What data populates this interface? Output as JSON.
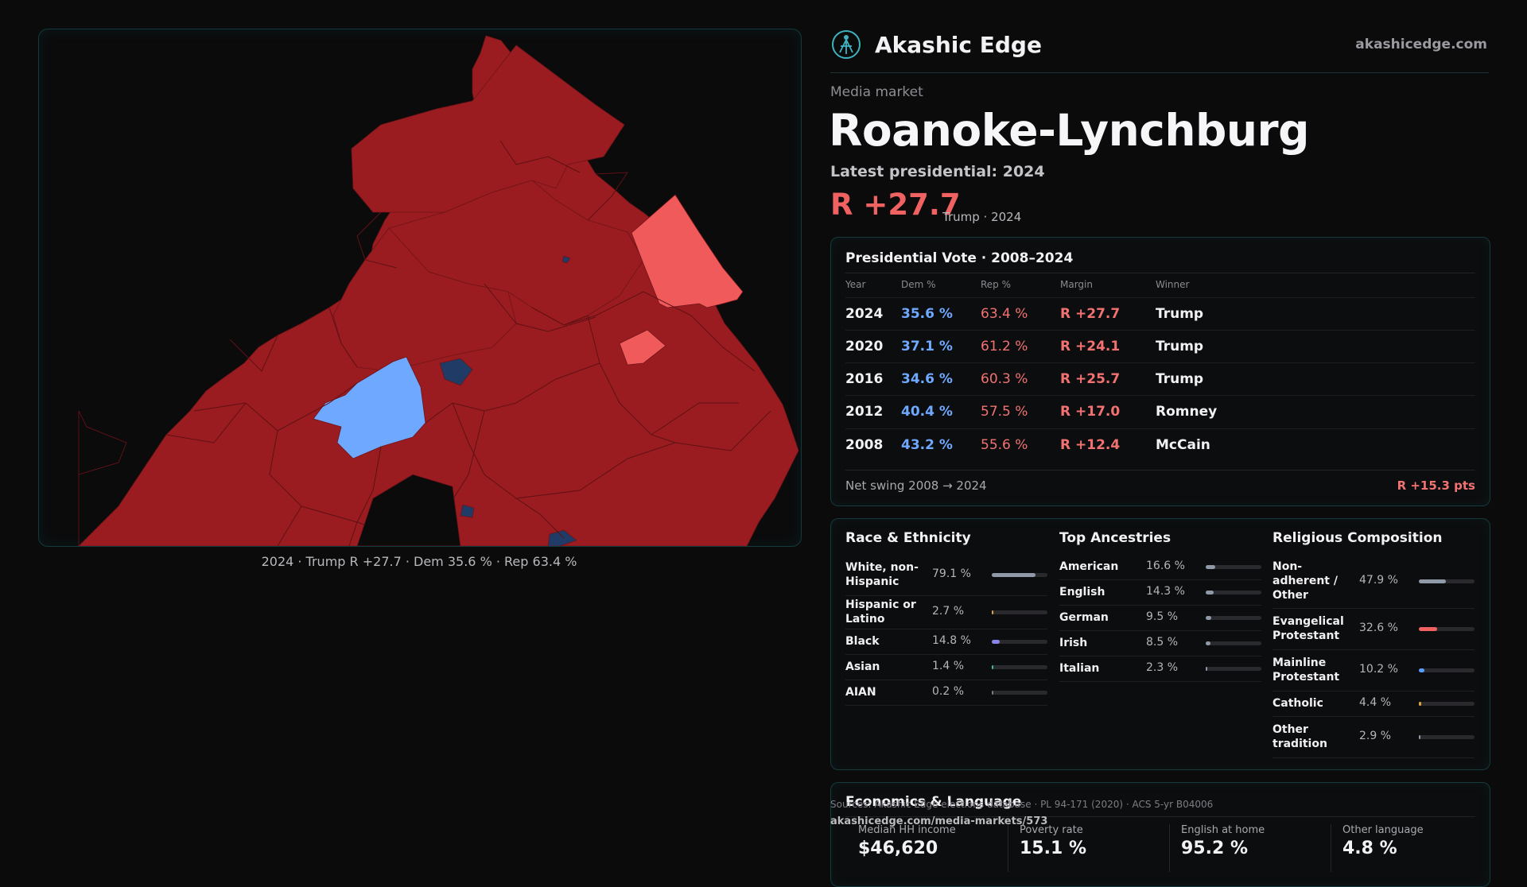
{
  "brand": {
    "name": "Akashic Edge",
    "url": "akashicedge.com"
  },
  "market": {
    "label": "Media market",
    "name": "Roanoke-Lynchburg",
    "latest_label": "Latest presidential: 2024",
    "latest_margin": "R +27.7",
    "latest_winner": "Trump · 2024"
  },
  "map": {
    "caption": "2024 · Trump R +27.7 · Dem 35.6 % · Rep 63.4 %",
    "colors": {
      "strong_rep": "#9a1c20",
      "lean_rep": "#f05a5a",
      "strong_dem": "#1f3b66",
      "lean_dem": "#6fa8ff"
    }
  },
  "presidential": {
    "title": "Presidential Vote · 2008–2024",
    "headers": {
      "year": "Year",
      "dem": "Dem %",
      "rep": "Rep %",
      "margin": "Margin",
      "winner": "Winner"
    },
    "rows": [
      {
        "year": "2024",
        "dem": "35.6 %",
        "rep": "63.4 %",
        "margin": "R +27.7",
        "winner": "Trump"
      },
      {
        "year": "2020",
        "dem": "37.1 %",
        "rep": "61.2 %",
        "margin": "R +24.1",
        "winner": "Trump"
      },
      {
        "year": "2016",
        "dem": "34.6 %",
        "rep": "60.3 %",
        "margin": "R +25.7",
        "winner": "Trump"
      },
      {
        "year": "2012",
        "dem": "40.4 %",
        "rep": "57.5 %",
        "margin": "R +17.0",
        "winner": "Romney"
      },
      {
        "year": "2008",
        "dem": "43.2 %",
        "rep": "55.6 %",
        "margin": "R +12.4",
        "winner": "McCain"
      }
    ],
    "swing_label": "Net swing 2008 → 2024",
    "swing_value": "R +15.3 pts"
  },
  "race": {
    "title": "Race & Ethnicity",
    "rows": [
      {
        "label": "White, non-Hispanic",
        "pct": "79.1 %",
        "value": 79.1,
        "color": "#8f99a8"
      },
      {
        "label": "Hispanic or Latino",
        "pct": "2.7 %",
        "value": 2.7,
        "color": "#e0a23a"
      },
      {
        "label": "Black",
        "pct": "14.8 %",
        "value": 14.8,
        "color": "#8b84e8"
      },
      {
        "label": "Asian",
        "pct": "1.4 %",
        "value": 1.4,
        "color": "#3fb8a0"
      },
      {
        "label": "AIAN",
        "pct": "0.2 %",
        "value": 0.2,
        "color": "#7a7a80"
      }
    ]
  },
  "ancestry": {
    "title": "Top Ancestries",
    "rows": [
      {
        "label": "American",
        "pct": "16.6 %",
        "value": 16.6,
        "color": "#8f99a8"
      },
      {
        "label": "English",
        "pct": "14.3 %",
        "value": 14.3,
        "color": "#8f99a8"
      },
      {
        "label": "German",
        "pct": "9.5 %",
        "value": 9.5,
        "color": "#8f99a8"
      },
      {
        "label": "Irish",
        "pct": "8.5 %",
        "value": 8.5,
        "color": "#8f99a8"
      },
      {
        "label": "Italian",
        "pct": "2.3 %",
        "value": 2.3,
        "color": "#8f99a8"
      }
    ]
  },
  "religion": {
    "title": "Religious Composition",
    "rows": [
      {
        "label": "Non-adherent / Other",
        "pct": "47.9 %",
        "value": 47.9,
        "color": "#8f99a8"
      },
      {
        "label": "Evangelical Protestant",
        "pct": "32.6 %",
        "value": 32.6,
        "color": "#f06262"
      },
      {
        "label": "Mainline Protestant",
        "pct": "10.2 %",
        "value": 10.2,
        "color": "#5b9cff"
      },
      {
        "label": "Catholic",
        "pct": "4.4 %",
        "value": 4.4,
        "color": "#e0a23a"
      },
      {
        "label": "Other tradition",
        "pct": "2.9 %",
        "value": 2.9,
        "color": "#8f99a8"
      }
    ]
  },
  "economics": {
    "title": "Economics & Language",
    "cells": [
      {
        "label": "Median HH income",
        "value": "$46,620"
      },
      {
        "label": "Poverty rate",
        "value": "15.1 %"
      },
      {
        "label": "English at home",
        "value": "95.2 %"
      },
      {
        "label": "Other language",
        "value": "4.8 %"
      }
    ]
  },
  "footer": {
    "sources": "Sources: Akashic Edge elections database · PL 94-171 (2020) · ACS 5-yr B04006",
    "url": "akashicedge.com/media-markets/573"
  }
}
